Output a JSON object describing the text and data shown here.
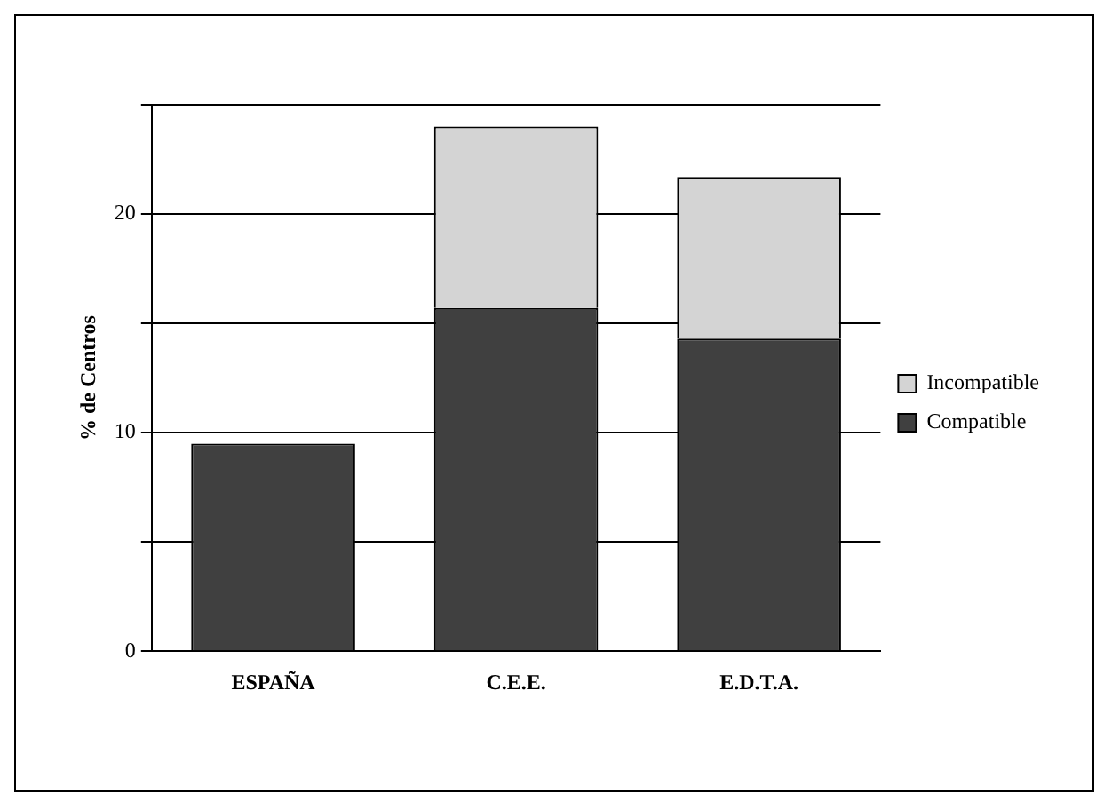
{
  "chart_data": {
    "type": "bar",
    "stacked": true,
    "ylabel": "% de Centros",
    "categories": [
      "ESPAÑA",
      "C.E.E.",
      "E.D.T.A."
    ],
    "series": [
      {
        "name": "Compatible",
        "color": "#404040",
        "values": [
          9.5,
          15.7,
          14.3
        ]
      },
      {
        "name": "Incompatible",
        "color": "#d4d4d4",
        "values": [
          0,
          8.3,
          7.4
        ]
      }
    ],
    "ylim": [
      0,
      25
    ],
    "yticks": [
      0,
      {
        "value": 5,
        "label": null
      },
      10,
      {
        "value": 15,
        "label": null
      },
      20,
      {
        "value": 25,
        "label": null
      }
    ],
    "grid": "y",
    "legend": "right"
  }
}
